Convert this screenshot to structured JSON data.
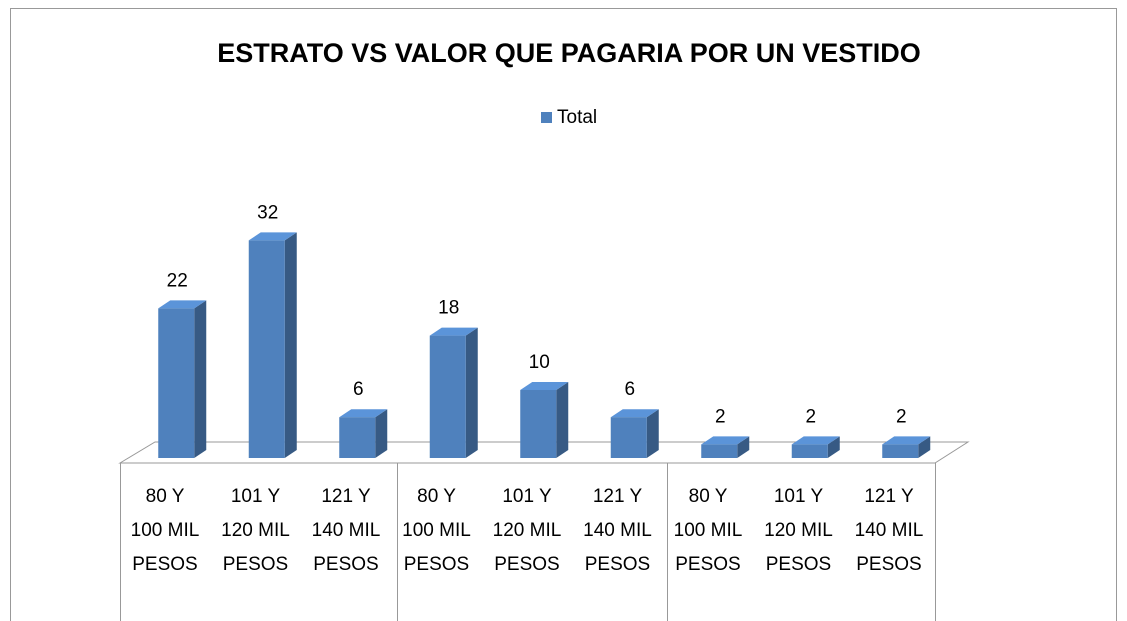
{
  "chart_data": {
    "type": "bar",
    "title": "ESTRATO  VS  VALOR QUE PAGARIA POR UN VESTIDO",
    "categories": [
      "80 Y 100 MIL PESOS",
      "101 Y 120 MIL PESOS",
      "121 Y 140 MIL PESOS",
      "80 Y 100 MIL PESOS",
      "101 Y 120 MIL PESOS",
      "121 Y 140 MIL PESOS",
      "80 Y 100 MIL PESOS",
      "101 Y 120 MIL PESOS",
      "121 Y 140 MIL PESOS"
    ],
    "series": [
      {
        "name": "Total",
        "color": "#4f81bd",
        "values": [
          22,
          32,
          6,
          18,
          10,
          6,
          2,
          2,
          2
        ]
      }
    ],
    "legend": "top"
  }
}
